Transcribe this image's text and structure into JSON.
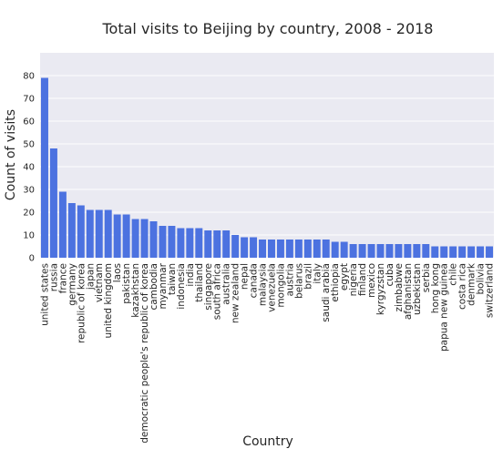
{
  "chart_data": {
    "type": "bar",
    "title": "Total visits to Beijing by country, 2008 - 2018",
    "xlabel": "Country",
    "ylabel": "Count of visits",
    "ylim": [
      0,
      90
    ],
    "yticks": [
      0,
      10,
      20,
      30,
      40,
      50,
      60,
      70,
      80
    ],
    "grid": true,
    "bar_color": "#4c72e0",
    "background_color": "#eaeaf2",
    "grid_color": "#ffffff",
    "categories": [
      "united states",
      "russia",
      "france",
      "germany",
      "republic of korea",
      "japan",
      "vietnam",
      "united kingdom",
      "laos",
      "pakistan",
      "kazakhstan",
      "democratic people's republic of korea",
      "cambodia",
      "myanmar",
      "taiwan",
      "indonesia",
      "india",
      "thailand",
      "singapore",
      "south africa",
      "australia",
      "new zealand",
      "nepal",
      "canada",
      "malaysia",
      "venezuela",
      "mongolia",
      "austria",
      "belarus",
      "brazil",
      "italy",
      "saudi arabia",
      "ethiopia",
      "egypt",
      "nigeria",
      "finland",
      "mexico",
      "kyrgyzstan",
      "cuba",
      "zimbabwe",
      "afghanistan",
      "uzbekistan",
      "serbia",
      "hong kong",
      "papua new guinea",
      "chile",
      "costa rica",
      "denmark",
      "bolivia",
      "switzerland"
    ],
    "values": [
      79,
      48,
      29,
      24,
      23,
      21,
      21,
      21,
      19,
      19,
      17,
      17,
      16,
      14,
      14,
      13,
      13,
      13,
      12,
      12,
      12,
      10,
      9,
      9,
      8,
      8,
      8,
      8,
      8,
      8,
      8,
      8,
      7,
      7,
      6,
      6,
      6,
      6,
      6,
      6,
      6,
      6,
      6,
      5,
      5,
      5,
      5,
      5,
      5,
      5
    ]
  }
}
